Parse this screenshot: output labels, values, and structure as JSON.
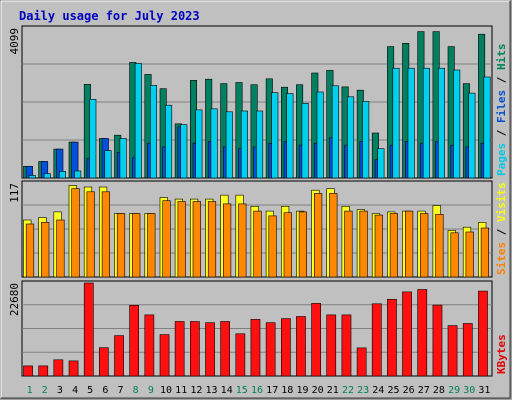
{
  "chart_data": {
    "type": "bar",
    "title": "Daily usage for July 2023",
    "categories": [
      "1",
      "2",
      "3",
      "4",
      "5",
      "6",
      "7",
      "8",
      "9",
      "10",
      "11",
      "12",
      "13",
      "14",
      "15",
      "16",
      "17",
      "18",
      "19",
      "20",
      "21",
      "22",
      "23",
      "24",
      "25",
      "26",
      "27",
      "28",
      "29",
      "30",
      "31"
    ],
    "weekend_days": [
      "1",
      "2",
      "8",
      "9",
      "15",
      "16",
      "22",
      "23",
      "29",
      "30"
    ],
    "panels": [
      {
        "id": "hits",
        "ymax_label": "4099",
        "ymax": 4099,
        "legend": [
          {
            "name": "Pages",
            "color": "#00c8e6"
          },
          {
            "name": "Files",
            "color": "#0050d0"
          },
          {
            "name": "Hits",
            "color": "#00805a"
          }
        ],
        "series": [
          {
            "name": "Hits",
            "color": "#008060",
            "values": [
              320,
              450,
              790,
              980,
              2560,
              1080,
              1170,
              3160,
              2830,
              2440,
              1480,
              2670,
              2700,
              2580,
              2610,
              2550,
              2710,
              2480,
              2550,
              2870,
              2940,
              2490,
              2400,
              1230,
              3590,
              3680,
              4000,
              4000,
              3590,
              2580,
              3930
            ]
          },
          {
            "name": "Files",
            "color": "#0050e0",
            "values": [
              320,
              450,
              790,
              980,
              530,
              1080,
              700,
              550,
              950,
              850,
              1400,
              950,
              1000,
              850,
              800,
              850,
              950,
              1000,
              900,
              950,
              1100,
              900,
              1000,
              500,
              900,
              1000,
              950,
              1000,
              900,
              850,
              950
            ]
          },
          {
            "name": "Pages",
            "color": "#00d0f0",
            "values": [
              70,
              120,
              180,
              190,
              2150,
              750,
              1080,
              3130,
              2530,
              1990,
              1460,
              1860,
              1890,
              1810,
              1830,
              1830,
              2330,
              2310,
              2040,
              2350,
              2520,
              2220,
              2090,
              800,
              3000,
              3000,
              3000,
              3000,
              2950,
              2320,
              2760
            ]
          }
        ]
      },
      {
        "id": "visits",
        "ymax_label": "117",
        "ymax": 117,
        "legend": [
          {
            "name": "Sites",
            "color": "#ff8000"
          },
          {
            "name": "Visits",
            "color": "#ffff00"
          }
        ],
        "series": [
          {
            "name": "Visits",
            "color": "#ffff20",
            "values": [
              71,
              74,
              81,
              114,
              112,
              112,
              79,
              79,
              79,
              99,
              97,
              97,
              97,
              102,
              102,
              88,
              82,
              88,
              82,
              108,
              110,
              88,
              84,
              79,
              81,
              82,
              82,
              89,
              58,
              62,
              68
            ]
          },
          {
            "name": "Sites",
            "color": "#ff8800",
            "values": [
              66,
              68,
              71,
              110,
              106,
              106,
              79,
              79,
              79,
              95,
              94,
              94,
              94,
              91,
              91,
              82,
              76,
              80,
              81,
              104,
              104,
              82,
              82,
              77,
              79,
              82,
              79,
              78,
              55,
              56,
              61
            ]
          }
        ]
      },
      {
        "id": "kbytes",
        "ymax_label": "22680",
        "ymax": 22680,
        "legend": [
          {
            "name": "KBytes",
            "color": "#e00000"
          }
        ],
        "series": [
          {
            "name": "KBytes",
            "color": "#ff1010",
            "values": [
              2460,
              2460,
              3940,
              3690,
              22680,
              6900,
              9850,
              17240,
              14900,
              10100,
              13300,
              13300,
              13000,
              13300,
              10300,
              13800,
              13000,
              14000,
              14500,
              17700,
              14900,
              14900,
              6850,
              17600,
              18700,
              20500,
              21100,
              17300,
              12300,
              12800,
              20700
            ]
          }
        ]
      }
    ]
  }
}
